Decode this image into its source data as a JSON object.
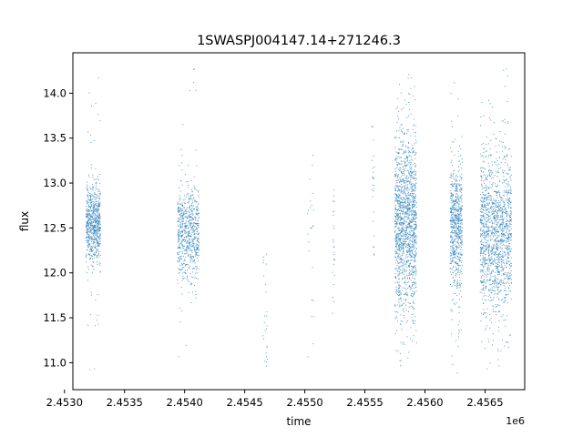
{
  "chart_data": {
    "type": "scatter",
    "title": "1SWASPJ004147.14+271246.3",
    "xlabel": "time",
    "ylabel": "flux",
    "x_offset_label": "1e6",
    "xlim": [
      2.45307,
      2.45683
    ],
    "ylim": [
      10.7,
      14.45
    ],
    "x_ticks": [
      2.453,
      2.4535,
      2.454,
      2.4545,
      2.455,
      2.4555,
      2.456,
      2.4565
    ],
    "x_tick_labels": [
      "2.4530",
      "2.4535",
      "2.4540",
      "2.4545",
      "2.4550",
      "2.4555",
      "2.4560",
      "2.4565"
    ],
    "y_ticks": [
      11.0,
      11.5,
      12.0,
      12.5,
      13.0,
      13.5,
      14.0
    ],
    "y_tick_labels": [
      "11.0",
      "11.5",
      "12.0",
      "12.5",
      "13.0",
      "13.5",
      "14.0"
    ],
    "grid": false,
    "legend": false,
    "marker_color": "#1f77b4",
    "series": [
      {
        "clusters": [
          {
            "x_center": 2.45324,
            "x_halfwidth": 6e-05,
            "y_center": 12.55,
            "y_spread": 0.22,
            "y_min": 10.88,
            "y_max": 14.22,
            "density": "high"
          },
          {
            "x_center": 2.45403,
            "x_halfwidth": 9e-05,
            "y_center": 12.45,
            "y_spread": 0.25,
            "y_min": 10.92,
            "y_max": 14.28,
            "density": "high"
          },
          {
            "x_center": 2.45467,
            "x_halfwidth": 2e-05,
            "y_center": 11.45,
            "y_spread": 0.35,
            "y_min": 10.95,
            "y_max": 12.28,
            "density": "sparse"
          },
          {
            "x_center": 2.45505,
            "x_halfwidth": 3e-05,
            "y_center": 12.35,
            "y_spread": 0.3,
            "y_min": 10.9,
            "y_max": 13.45,
            "density": "sparse"
          },
          {
            "x_center": 2.45524,
            "x_halfwidth": 1e-05,
            "y_center": 12.4,
            "y_spread": 0.3,
            "y_min": 11.55,
            "y_max": 12.95,
            "density": "sparse"
          },
          {
            "x_center": 2.45557,
            "x_halfwidth": 1e-05,
            "y_center": 12.75,
            "y_spread": 0.35,
            "y_min": 12.1,
            "y_max": 13.8,
            "density": "sparse"
          },
          {
            "x_center": 2.45584,
            "x_halfwidth": 9e-05,
            "y_center": 12.55,
            "y_spread": 0.5,
            "y_min": 10.88,
            "y_max": 14.25,
            "density": "very-high"
          },
          {
            "x_center": 2.45626,
            "x_halfwidth": 5e-05,
            "y_center": 12.5,
            "y_spread": 0.35,
            "y_min": 10.88,
            "y_max": 14.2,
            "density": "high"
          },
          {
            "x_center": 2.45659,
            "x_halfwidth": 0.00013,
            "y_center": 12.45,
            "y_spread": 0.45,
            "y_min": 10.88,
            "y_max": 14.28,
            "density": "very-high"
          }
        ]
      }
    ]
  }
}
